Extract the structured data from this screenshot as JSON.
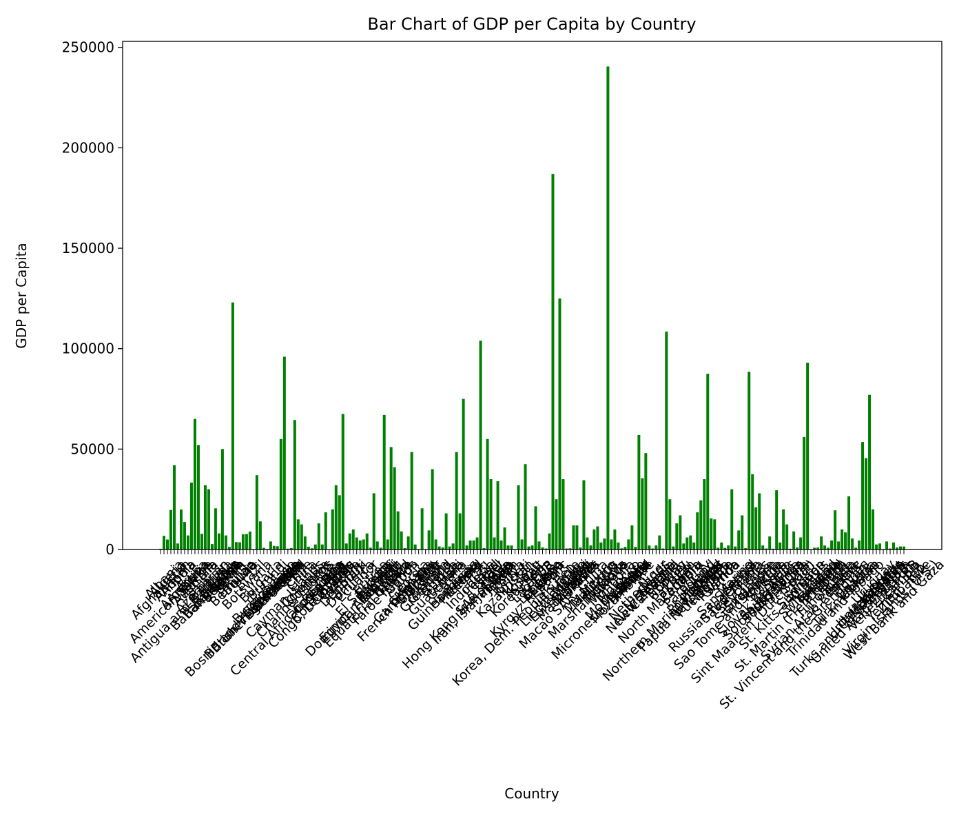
{
  "chart_data": {
    "type": "bar",
    "title": "Bar Chart of GDP per Capita by Country",
    "x_label": "Country",
    "y_label": "GDP per Capita",
    "color": "#008000",
    "ylim": [
      0,
      253000
    ],
    "yticks": [
      0,
      50000,
      100000,
      150000,
      200000,
      250000
    ],
    "categories": [
      "Afghanistan",
      "Albania",
      "Algeria",
      "American Samoa",
      "Andorra",
      "Angola",
      "Antigua and Barbuda",
      "Argentina",
      "Armenia",
      "Aruba",
      "Australia",
      "Austria",
      "Azerbaijan",
      "Bahamas, The",
      "Bahrain",
      "Bangladesh",
      "Barbados",
      "Belarus",
      "Belgium",
      "Belize",
      "Benin",
      "Bermuda",
      "Bhutan",
      "Bolivia",
      "Bosnia and Herzegovina",
      "Botswana",
      "Brazil",
      "British Virgin Islands",
      "Brunei Darussalam",
      "Bulgaria",
      "Burkina Faso",
      "Burundi",
      "Cabo Verde",
      "Cambodia",
      "Cameroon",
      "Canada",
      "Cayman Islands",
      "Central African Republic",
      "Chad",
      "Channel Islands",
      "Chile",
      "China",
      "Colombia",
      "Comoros",
      "Congo, Dem. Rep.",
      "Congo, Rep.",
      "Costa Rica",
      "Cote d'Ivoire",
      "Croatia",
      "Cuba",
      "Curacao",
      "Cyprus",
      "Czechia",
      "Denmark",
      "Djibouti",
      "Dominica",
      "Dominican Republic",
      "Ecuador",
      "Egypt, Arab Rep.",
      "El Salvador",
      "Equatorial Guinea",
      "Eritrea",
      "Estonia",
      "Eswatini",
      "Ethiopia",
      "Faroe Islands",
      "Fiji",
      "Finland",
      "France",
      "French Polynesia",
      "Gabon",
      "Gambia, The",
      "Georgia",
      "Germany",
      "Ghana",
      "Gibraltar",
      "Greece",
      "Greenland",
      "Grenada",
      "Guam",
      "Guatemala",
      "Guinea",
      "Guinea-Bissau",
      "Guyana",
      "Haiti",
      "Honduras",
      "Hong Kong SAR, China",
      "Hungary",
      "Iceland",
      "India",
      "Indonesia",
      "Iran, Islamic Rep.",
      "Iraq",
      "Ireland",
      "Isle of Man",
      "Israel",
      "Italy",
      "Jamaica",
      "Japan",
      "Jordan",
      "Kazakhstan",
      "Kenya",
      "Kiribati",
      "Korea, Dem. People's Rep.",
      "Korea, Rep.",
      "Kosovo",
      "Kuwait",
      "Kyrgyz Republic",
      "Lao PDR",
      "Latvia",
      "Lebanon",
      "Lesotho",
      "Liberia",
      "Libya",
      "Liechtenstein",
      "Lithuania",
      "Luxembourg",
      "Macao SAR, China",
      "Madagascar",
      "Malawi",
      "Malaysia",
      "Maldives",
      "Mali",
      "Malta",
      "Marshall Islands",
      "Mauritania",
      "Mauritius",
      "Mexico",
      "Micronesia, Fed. Sts.",
      "Moldova",
      "Monaco",
      "Mongolia",
      "Montenegro",
      "Morocco",
      "Mozambique",
      "Myanmar",
      "Namibia",
      "Nauru",
      "Nepal",
      "Netherlands",
      "New Caledonia",
      "New Zealand",
      "Nicaragua",
      "Niger",
      "Nigeria",
      "North Macedonia",
      "Northern Mariana Islands",
      "Norway",
      "Oman",
      "Pakistan",
      "Palau",
      "Panama",
      "Papua New Guinea",
      "Paraguay",
      "Peru",
      "Philippines",
      "Poland",
      "Portugal",
      "Puerto Rico",
      "Qatar",
      "Romania",
      "Russian Federation",
      "Rwanda",
      "Samoa",
      "San Marino",
      "Sao Tome and Principe",
      "Saudi Arabia",
      "Senegal",
      "Serbia",
      "Seychelles",
      "Sierra Leone",
      "Singapore",
      "Sint Maarten (Dutch part)",
      "Slovak Republic",
      "Slovenia",
      "Solomon Islands",
      "Somalia",
      "South Africa",
      "South Sudan",
      "Spain",
      "Sri Lanka",
      "St. Kitts and Nevis",
      "St. Lucia",
      "St. Martin (French part)",
      "St. Vincent and the Grenadines",
      "Sudan",
      "Suriname",
      "Sweden",
      "Switzerland",
      "Syrian Arab Republic",
      "Tajikistan",
      "Tanzania",
      "Thailand",
      "Timor-Leste",
      "Togo",
      "Tonga",
      "Trinidad and Tobago",
      "Tunisia",
      "Turkiye",
      "Turkmenistan",
      "Turks and Caicos Islands",
      "Tuvalu",
      "Uganda",
      "Ukraine",
      "United Arab Emirates",
      "United Kingdom",
      "United States",
      "Uruguay",
      "Uzbekistan",
      "Vanuatu",
      "Venezuela, RB",
      "Viet Nam",
      "Virgin Islands (U.S.)",
      "West Bank and Gaza",
      "Yemen, Rep.",
      "Zambia",
      "Zimbabwe"
    ],
    "values": [
      360,
      6800,
      4960,
      19700,
      42000,
      3000,
      19900,
      13700,
      7000,
      33300,
      65000,
      52000,
      7800,
      32000,
      30000,
      2700,
      20500,
      8000,
      50000,
      7000,
      1300,
      123000,
      3700,
      3600,
      7600,
      7700,
      8900,
      0,
      37000,
      14000,
      830,
      260,
      4000,
      1800,
      1600,
      55000,
      96000,
      430,
      720,
      64500,
      15000,
      12500,
      6500,
      1400,
      600,
      2500,
      13000,
      2500,
      18500,
      0,
      20000,
      32000,
      27000,
      67500,
      3000,
      8000,
      10000,
      6000,
      4500,
      5000,
      8000,
      900,
      28000,
      4000,
      900,
      67000,
      5000,
      51000,
      41000,
      19000,
      9000,
      700,
      6500,
      48500,
      2500,
      0,
      20500,
      0,
      9500,
      40000,
      5000,
      1500,
      1000,
      18000,
      1500,
      3000,
      48500,
      18000,
      75000,
      2000,
      4500,
      4500,
      6000,
      104000,
      700,
      55000,
      35000,
      6000,
      34000,
      4500,
      11000,
      2000,
      2000,
      200,
      32000,
      5000,
      42500,
      1500,
      2000,
      21500,
      4000,
      1000,
      500,
      8000,
      187000,
      25000,
      125000,
      35000,
      500,
      600,
      12000,
      12000,
      1000,
      34500,
      6000,
      2000,
      10000,
      11500,
      3500,
      5500,
      240500,
      5000,
      10000,
      3500,
      600,
      1300,
      5000,
      12000,
      1300,
      57000,
      35500,
      48000,
      2000,
      500,
      2000,
      7000,
      500,
      108500,
      25000,
      1500,
      13000,
      17000,
      3000,
      6000,
      7000,
      3500,
      18500,
      24500,
      35000,
      87500,
      15500,
      15000,
      900,
      3500,
      800,
      2000,
      30000,
      1500,
      9500,
      17000,
      700,
      88500,
      37500,
      21000,
      28000,
      2000,
      500,
      6500,
      400,
      29500,
      3500,
      20000,
      12500,
      400,
      9000,
      1000,
      6000,
      56000,
      93000,
      0,
      900,
      1000,
      6500,
      2000,
      900,
      4500,
      19500,
      4000,
      10000,
      8500,
      26500,
      5500,
      900,
      4500,
      53500,
      45500,
      77000,
      20000,
      2500,
      3000,
      200,
      4000,
      500,
      3500,
      1000,
      1500,
      1500
    ]
  }
}
